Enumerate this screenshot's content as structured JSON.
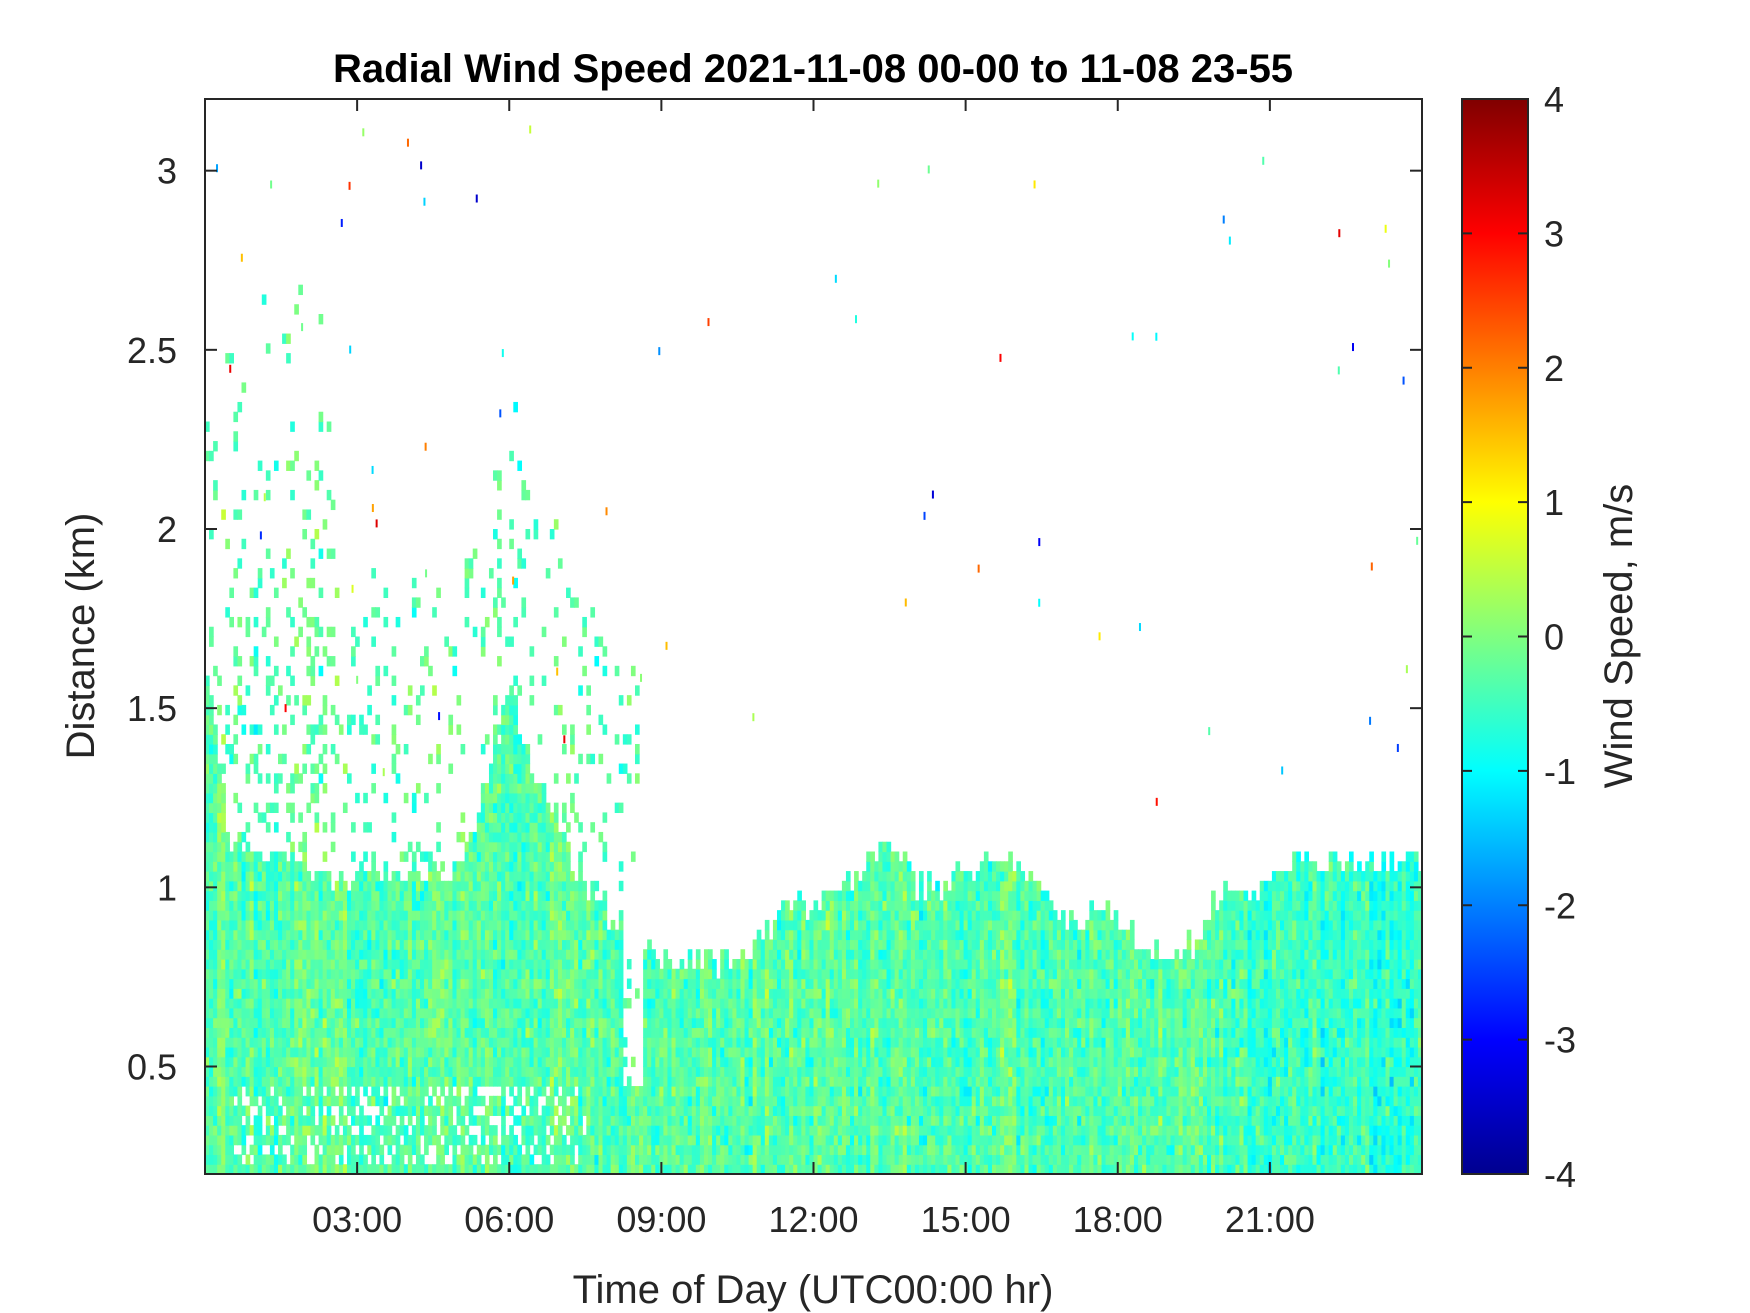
{
  "chart_data": {
    "type": "heatmap",
    "title": "Radial Wind Speed 2021-11-08 00-00 to 11-08 23-55",
    "xlabel": "Time of Day (UTC00:00 hr)",
    "ylabel": "Distance (km)",
    "colorbar_label": "Wind Speed, m/s",
    "xlim": [
      0,
      24
    ],
    "ylim": [
      0.2,
      3.2
    ],
    "clim": [
      -4,
      4
    ],
    "colormap": "jet",
    "grid": false,
    "x_ticks": [
      {
        "value": 3,
        "label": "03:00"
      },
      {
        "value": 6,
        "label": "06:00"
      },
      {
        "value": 9,
        "label": "09:00"
      },
      {
        "value": 12,
        "label": "12:00"
      },
      {
        "value": 15,
        "label": "15:00"
      },
      {
        "value": 18,
        "label": "18:00"
      },
      {
        "value": 21,
        "label": "21:00"
      }
    ],
    "y_ticks": [
      {
        "value": 0.5,
        "label": "0.5"
      },
      {
        "value": 1,
        "label": "1"
      },
      {
        "value": 1.5,
        "label": "1.5"
      },
      {
        "value": 2,
        "label": "2"
      },
      {
        "value": 2.5,
        "label": "2.5"
      },
      {
        "value": 3,
        "label": "3"
      }
    ],
    "colorbar_ticks": [
      {
        "value": 4,
        "label": "4"
      },
      {
        "value": 3,
        "label": "3"
      },
      {
        "value": 2,
        "label": "2"
      },
      {
        "value": 1,
        "label": "1"
      },
      {
        "value": 0,
        "label": "0"
      },
      {
        "value": -1,
        "label": "-1"
      },
      {
        "value": -2,
        "label": "-2"
      },
      {
        "value": -3,
        "label": "-3"
      },
      {
        "value": -4,
        "label": "-4"
      }
    ],
    "data_top_km": {
      "hours": [
        0,
        0.5,
        1,
        1.5,
        2,
        2.5,
        3,
        3.5,
        4,
        4.5,
        5,
        5.5,
        6,
        6.5,
        7,
        7.5,
        8,
        8.5,
        9,
        9.5,
        10,
        10.5,
        11,
        11.5,
        12,
        12.5,
        13,
        13.5,
        14,
        14.5,
        15,
        15.5,
        16,
        16.5,
        17,
        17.5,
        18,
        18.5,
        19,
        19.5,
        20,
        20.5,
        21,
        21.5,
        22,
        22.5,
        23,
        23.5,
        24
      ],
      "top_km": [
        1.6,
        1.1,
        1.1,
        1.1,
        1.05,
        1.0,
        1.05,
        1.05,
        1.05,
        1.05,
        1.05,
        1.3,
        1.55,
        1.3,
        1.15,
        1.0,
        0.9,
        0.85,
        0.8,
        0.8,
        0.78,
        0.8,
        0.88,
        0.95,
        0.95,
        0.98,
        1.08,
        1.12,
        1.0,
        1.0,
        1.05,
        1.1,
        1.05,
        1.0,
        0.9,
        0.95,
        0.9,
        0.85,
        0.8,
        0.85,
        0.98,
        0.95,
        1.05,
        1.08,
        1.08,
        1.08,
        1.08,
        1.08,
        1.08
      ]
    },
    "series": [
      {
        "name": "Radial wind speed (m/s)",
        "typical_range": [
          -1.5,
          1.0
        ],
        "dominant_value": -0.3
      }
    ]
  }
}
